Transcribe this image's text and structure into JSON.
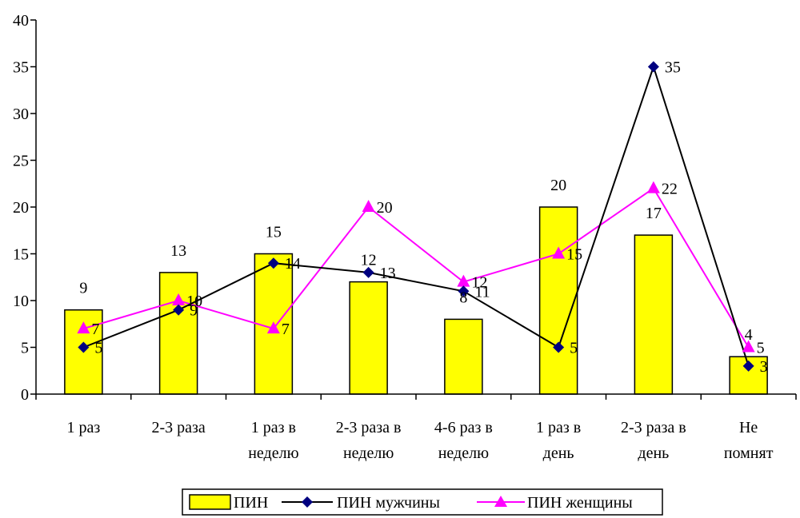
{
  "chart_data": {
    "type": "bar",
    "categories": [
      [
        "1 раз"
      ],
      [
        "2-3 раза"
      ],
      [
        "1 раз в",
        "неделю"
      ],
      [
        "2-3 раза в",
        "неделю"
      ],
      [
        "4-6 раз в",
        "неделю"
      ],
      [
        "1 раз в",
        "день"
      ],
      [
        "2-3 раза в",
        "день"
      ],
      [
        "Не",
        "помнят"
      ]
    ],
    "ylim": [
      0,
      40
    ],
    "yticks": [
      0,
      5,
      10,
      15,
      20,
      25,
      30,
      35,
      40
    ],
    "grid": false,
    "legend_position": "bottom",
    "series": [
      {
        "name": "ПИН",
        "kind": "bar",
        "color": "#ffff00",
        "values": [
          9,
          13,
          15,
          12,
          8,
          20,
          17,
          4
        ]
      },
      {
        "name": "ПИН мужчины",
        "kind": "line",
        "marker": "diamond",
        "color": "#000080",
        "line_color": "#000000",
        "values": [
          5,
          9,
          14,
          13,
          11,
          5,
          35,
          3
        ]
      },
      {
        "name": "ПИН женщины",
        "kind": "line",
        "marker": "triangle",
        "color": "#ff00ff",
        "line_color": "#ff00ff",
        "values": [
          7,
          10,
          7,
          20,
          12,
          15,
          22,
          5
        ]
      }
    ]
  }
}
